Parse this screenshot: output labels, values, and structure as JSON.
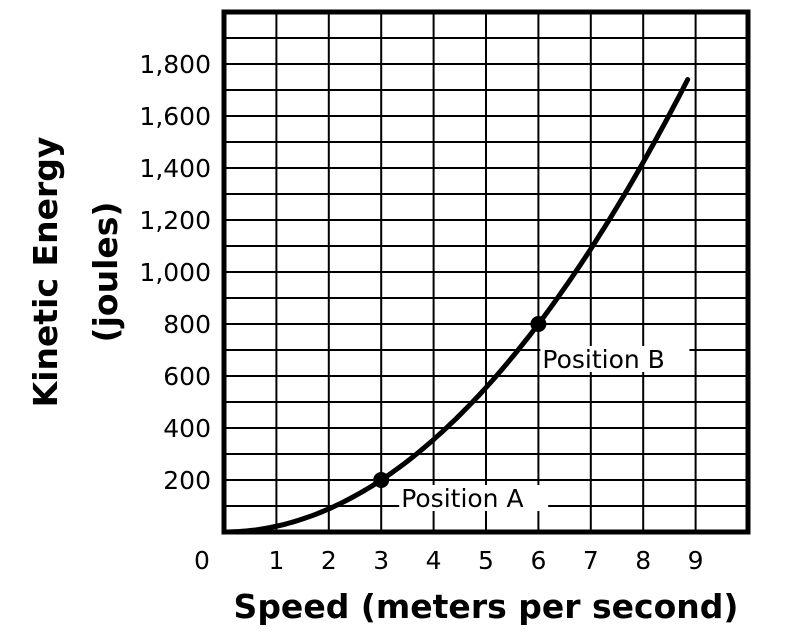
{
  "chart_data": {
    "type": "line",
    "title": "",
    "xlabel": "Speed (meters per second)",
    "ylabel_lines": [
      "Kinetic Energy",
      "(joules)"
    ],
    "xlim": [
      0,
      10
    ],
    "ylim": [
      0,
      2000
    ],
    "grid": true,
    "x_ticks": [
      0,
      1,
      2,
      3,
      4,
      5,
      6,
      7,
      8,
      9
    ],
    "x_tick_labels": [
      "0",
      "1",
      "2",
      "3",
      "4",
      "5",
      "6",
      "7",
      "8",
      "9"
    ],
    "y_ticks": [
      200,
      400,
      600,
      800,
      1000,
      1200,
      1400,
      1600,
      1800
    ],
    "y_tick_labels": [
      "200",
      "400",
      "600",
      "800",
      "1,000",
      "1,200",
      "1,400",
      "1,600",
      "1,800"
    ],
    "series": [
      {
        "name": "Kinetic Energy",
        "formula": "KE = 22.22 * v^2",
        "x_range": [
          0,
          8.85
        ]
      }
    ],
    "points": [
      {
        "label": "Position A",
        "x": 3,
        "y": 200
      },
      {
        "label": "Position B",
        "x": 6,
        "y": 800
      }
    ]
  }
}
